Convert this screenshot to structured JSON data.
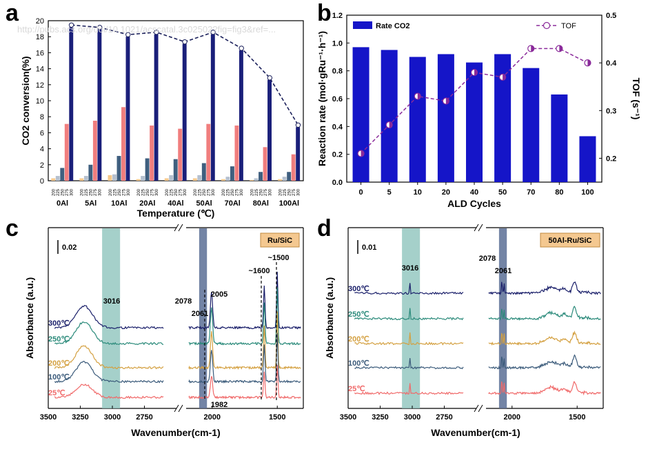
{
  "chart_data": [
    {
      "panel": "a",
      "type": "bar",
      "ylabel": "CO2 conversion(%)",
      "xlabel": "Temperature (℃)",
      "ylim": [
        0,
        20
      ],
      "yticks": [
        0,
        2,
        4,
        6,
        8,
        10,
        12,
        14,
        16,
        18,
        20
      ],
      "groups": [
        "0Al",
        "5Al",
        "10Al",
        "20Al",
        "40Al",
        "50Al",
        "70Al",
        "80Al",
        "100Al"
      ],
      "temps": [
        "200",
        "225",
        "250",
        "275",
        "300"
      ],
      "series": [
        {
          "name": "200",
          "color": "#f5c78a",
          "values": [
            0.3,
            0.3,
            0.7,
            0.2,
            0.3,
            0.3,
            0.2,
            0.1,
            0.2
          ]
        },
        {
          "name": "225",
          "color": "#b5c0cf",
          "values": [
            0.6,
            0.6,
            0.8,
            0.6,
            0.7,
            0.7,
            0.5,
            0.3,
            0.5
          ]
        },
        {
          "name": "250",
          "color": "#3f5f7f",
          "values": [
            1.6,
            2.0,
            3.1,
            2.8,
            2.7,
            2.2,
            1.8,
            1.1,
            1.1
          ]
        },
        {
          "name": "275",
          "color": "#f07e7e",
          "values": [
            7.1,
            7.5,
            9.2,
            6.9,
            6.5,
            7.1,
            6.9,
            4.2,
            3.3
          ]
        },
        {
          "name": "300",
          "color": "#1a1f7a",
          "values": [
            19.2,
            18.9,
            18.0,
            18.3,
            17.1,
            18.3,
            16.3,
            12.6,
            6.7
          ]
        }
      ],
      "trend_values": [
        19.2,
        18.9,
        18.0,
        18.3,
        17.1,
        18.3,
        16.3,
        12.6,
        6.7
      ]
    },
    {
      "panel": "b",
      "type": "bar",
      "xlabel": "ALD Cycles",
      "ylabel": "Reaction rate (mol·gRu⁻¹·h⁻¹)",
      "y2label": "TOF (s⁻¹)",
      "categories": [
        "0",
        "5",
        "10",
        "20",
        "40",
        "50",
        "70",
        "80",
        "100"
      ],
      "ylim": [
        0,
        1.2
      ],
      "yticks": [
        0.0,
        0.2,
        0.4,
        0.6,
        0.8,
        1.0,
        1.2
      ],
      "y2lim": [
        0.15,
        0.5
      ],
      "y2ticks": [
        0.2,
        0.3,
        0.4,
        0.5
      ],
      "rate": [
        0.97,
        0.95,
        0.9,
        0.92,
        0.86,
        0.92,
        0.82,
        0.63,
        0.33
      ],
      "tof": [
        0.21,
        0.27,
        0.33,
        0.32,
        0.38,
        0.37,
        0.43,
        0.43,
        0.4
      ],
      "legend": [
        "Rate CO2",
        "TOF"
      ],
      "bar_color": "#1515c8",
      "tof_color": "#8a2a9a"
    },
    {
      "panel": "c",
      "type": "line",
      "xlabel": "Wavenumber(cm-1)",
      "ylabel": "Absorbance (a.u.)",
      "xticks_left": [
        3500,
        3250,
        3000,
        2750
      ],
      "xticks_right": [
        2000,
        1500
      ],
      "tag": "Ru/SiC",
      "scale": "0.02",
      "annotations": [
        "3016",
        "2078",
        "2061",
        "2005",
        "1982",
        "~1600",
        "~1500"
      ],
      "series": [
        {
          "name": "300℃",
          "color": "#1a1f6a"
        },
        {
          "name": "250℃",
          "color": "#2a8a7a"
        },
        {
          "name": "200℃",
          "color": "#d4a040"
        },
        {
          "name": "100℃",
          "color": "#3a5a7a"
        },
        {
          "name": "25℃",
          "color": "#f06a6a"
        }
      ]
    },
    {
      "panel": "d",
      "type": "line",
      "xlabel": "Wavenumber(cm-1)",
      "ylabel": "Absorbance (a.u.)",
      "xticks_left": [
        3500,
        3250,
        3000,
        2750
      ],
      "xticks_right": [
        2000,
        1500
      ],
      "tag": "50Al-Ru/SiC",
      "scale": "0.01",
      "annotations": [
        "3016",
        "2078",
        "2061"
      ],
      "series": [
        {
          "name": "300℃",
          "color": "#1a1f6a"
        },
        {
          "name": "250℃",
          "color": "#2a8a7a"
        },
        {
          "name": "200℃",
          "color": "#d4a040"
        },
        {
          "name": "100℃",
          "color": "#3a5a7a"
        },
        {
          "name": "25℃",
          "color": "#f06a6a"
        }
      ]
    }
  ],
  "labels": {
    "a": "a",
    "b": "b",
    "c": "c",
    "d": "d",
    "watermark": "http://pubs.acs.org/doi/10.1021/acscatal.3c02502?fig=fig3&ref=..."
  }
}
